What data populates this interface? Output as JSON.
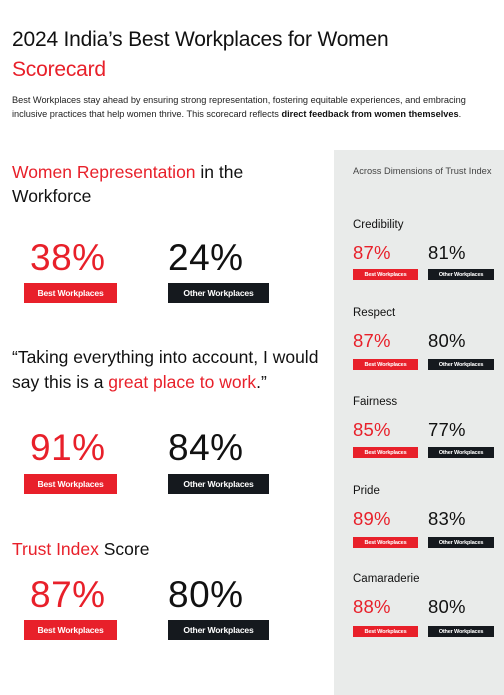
{
  "header": {
    "title": "2024 India’s Best Workplaces for Women",
    "subtitle": "Scorecard",
    "intro_text": "Best Workplaces stay ahead by ensuring strong representation, fostering equitable experiences, and embracing inclusive practices that help women thrive. This scorecard reflects ",
    "intro_bold": "direct feedback from women themselves",
    "intro_end": "."
  },
  "labels": {
    "best": "Best Workplaces",
    "other": "Other Workplaces"
  },
  "representation": {
    "heading_red": "Women Representation",
    "heading_rest_1": " in the",
    "heading_rest_2": "Workforce",
    "best_value": "38%",
    "other_value": "24%"
  },
  "great_place": {
    "quote_start": "“Taking everything into account, I would say this is a ",
    "quote_red": "great place to work",
    "quote_end": ".”",
    "best_value": "91%",
    "other_value": "84%"
  },
  "trust_index": {
    "heading_red": "Trust Index",
    "heading_rest": " Score",
    "best_value": "87%",
    "other_value": "80%"
  },
  "sidebar": {
    "title": "Across Dimensions of Trust Index",
    "dimensions": [
      {
        "name": "Credibility",
        "best": "87%",
        "other": "81%"
      },
      {
        "name": "Respect",
        "best": "87%",
        "other": "80%"
      },
      {
        "name": "Fairness",
        "best": "85%",
        "other": "77%"
      },
      {
        "name": "Pride",
        "best": "89%",
        "other": "83%"
      },
      {
        "name": "Camaraderie",
        "best": "88%",
        "other": "80%"
      }
    ]
  },
  "colors": {
    "accent_red": "#e8202a",
    "dark": "#15191e",
    "sidebar_bg": "#e9ebea"
  }
}
